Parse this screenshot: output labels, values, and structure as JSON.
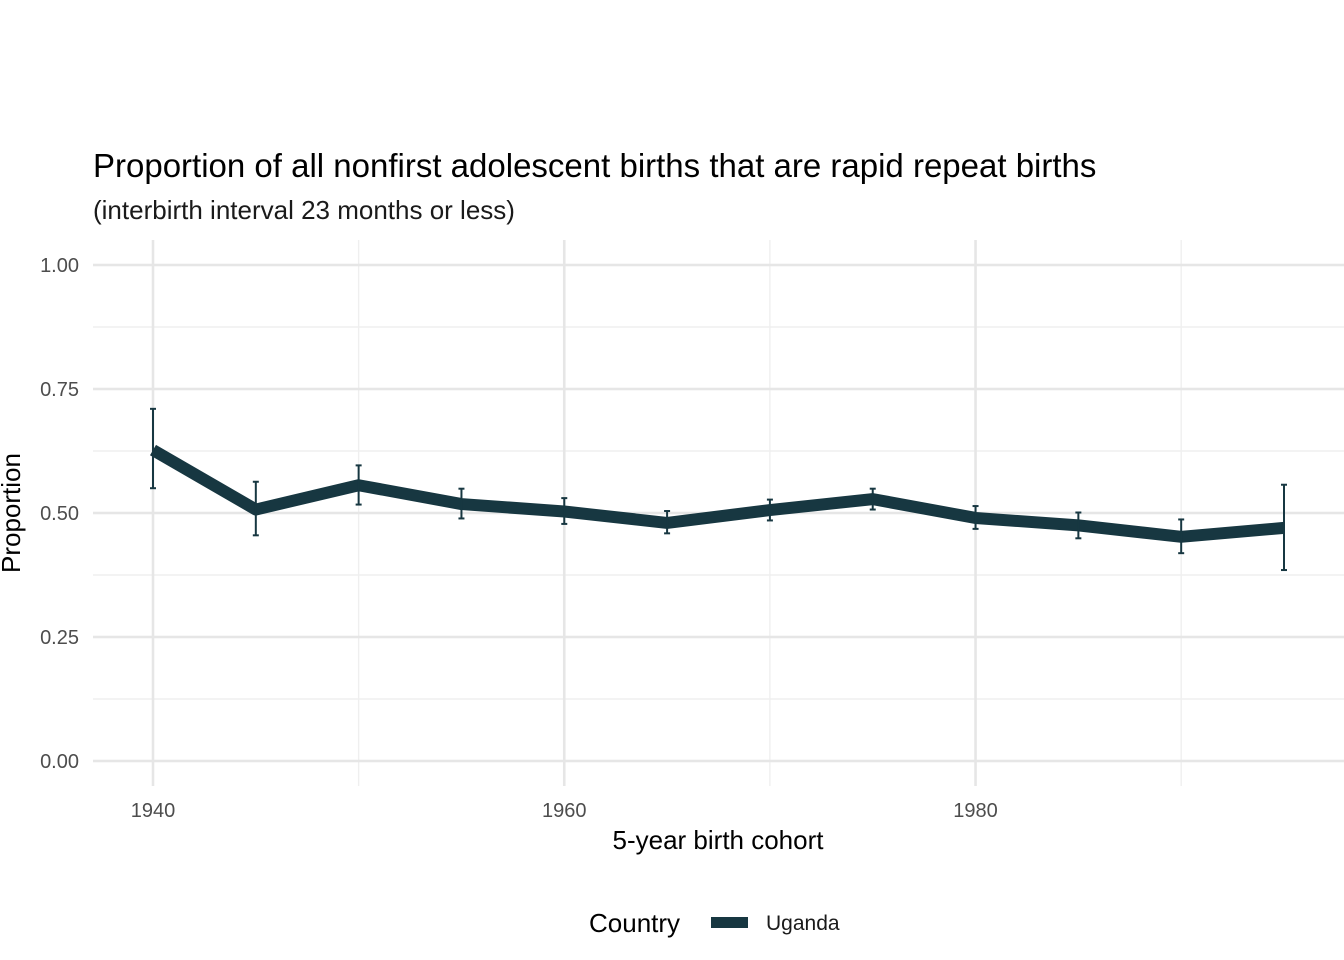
{
  "chart_data": {
    "type": "line",
    "title": "Proportion of all nonfirst adolescent births that are rapid repeat births",
    "subtitle": "(interbirth interval 23 months or less)",
    "xlabel": "5-year birth cohort",
    "ylabel": "Proportion",
    "xlim": [
      1940,
      1995
    ],
    "ylim": [
      0,
      1
    ],
    "x_ticks": [
      1940,
      1960,
      1980
    ],
    "x_tick_labels": [
      "1940",
      "1960",
      "1980"
    ],
    "y_ticks": [
      0,
      0.25,
      0.5,
      0.75,
      1.0
    ],
    "y_tick_labels": [
      "0.00",
      "0.25",
      "0.50",
      "0.75",
      "1.00"
    ],
    "grid": true,
    "legend": {
      "title": "Country",
      "position": "bottom"
    },
    "series": [
      {
        "name": "Uganda",
        "color": "#173741",
        "points": [
          {
            "x": 1940,
            "y": 0.627,
            "lower": 0.55,
            "upper": 0.71
          },
          {
            "x": 1945,
            "y": 0.507,
            "lower": 0.455,
            "upper": 0.563
          },
          {
            "x": 1950,
            "y": 0.556,
            "lower": 0.517,
            "upper": 0.596
          },
          {
            "x": 1955,
            "y": 0.518,
            "lower": 0.489,
            "upper": 0.549
          },
          {
            "x": 1960,
            "y": 0.503,
            "lower": 0.478,
            "upper": 0.53
          },
          {
            "x": 1965,
            "y": 0.48,
            "lower": 0.459,
            "upper": 0.504
          },
          {
            "x": 1970,
            "y": 0.506,
            "lower": 0.485,
            "upper": 0.527
          },
          {
            "x": 1975,
            "y": 0.528,
            "lower": 0.507,
            "upper": 0.549
          },
          {
            "x": 1980,
            "y": 0.49,
            "lower": 0.468,
            "upper": 0.514
          },
          {
            "x": 1985,
            "y": 0.475,
            "lower": 0.449,
            "upper": 0.501
          },
          {
            "x": 1990,
            "y": 0.452,
            "lower": 0.419,
            "upper": 0.487
          },
          {
            "x": 1995,
            "y": 0.47,
            "lower": 0.385,
            "upper": 0.557
          }
        ]
      }
    ]
  }
}
